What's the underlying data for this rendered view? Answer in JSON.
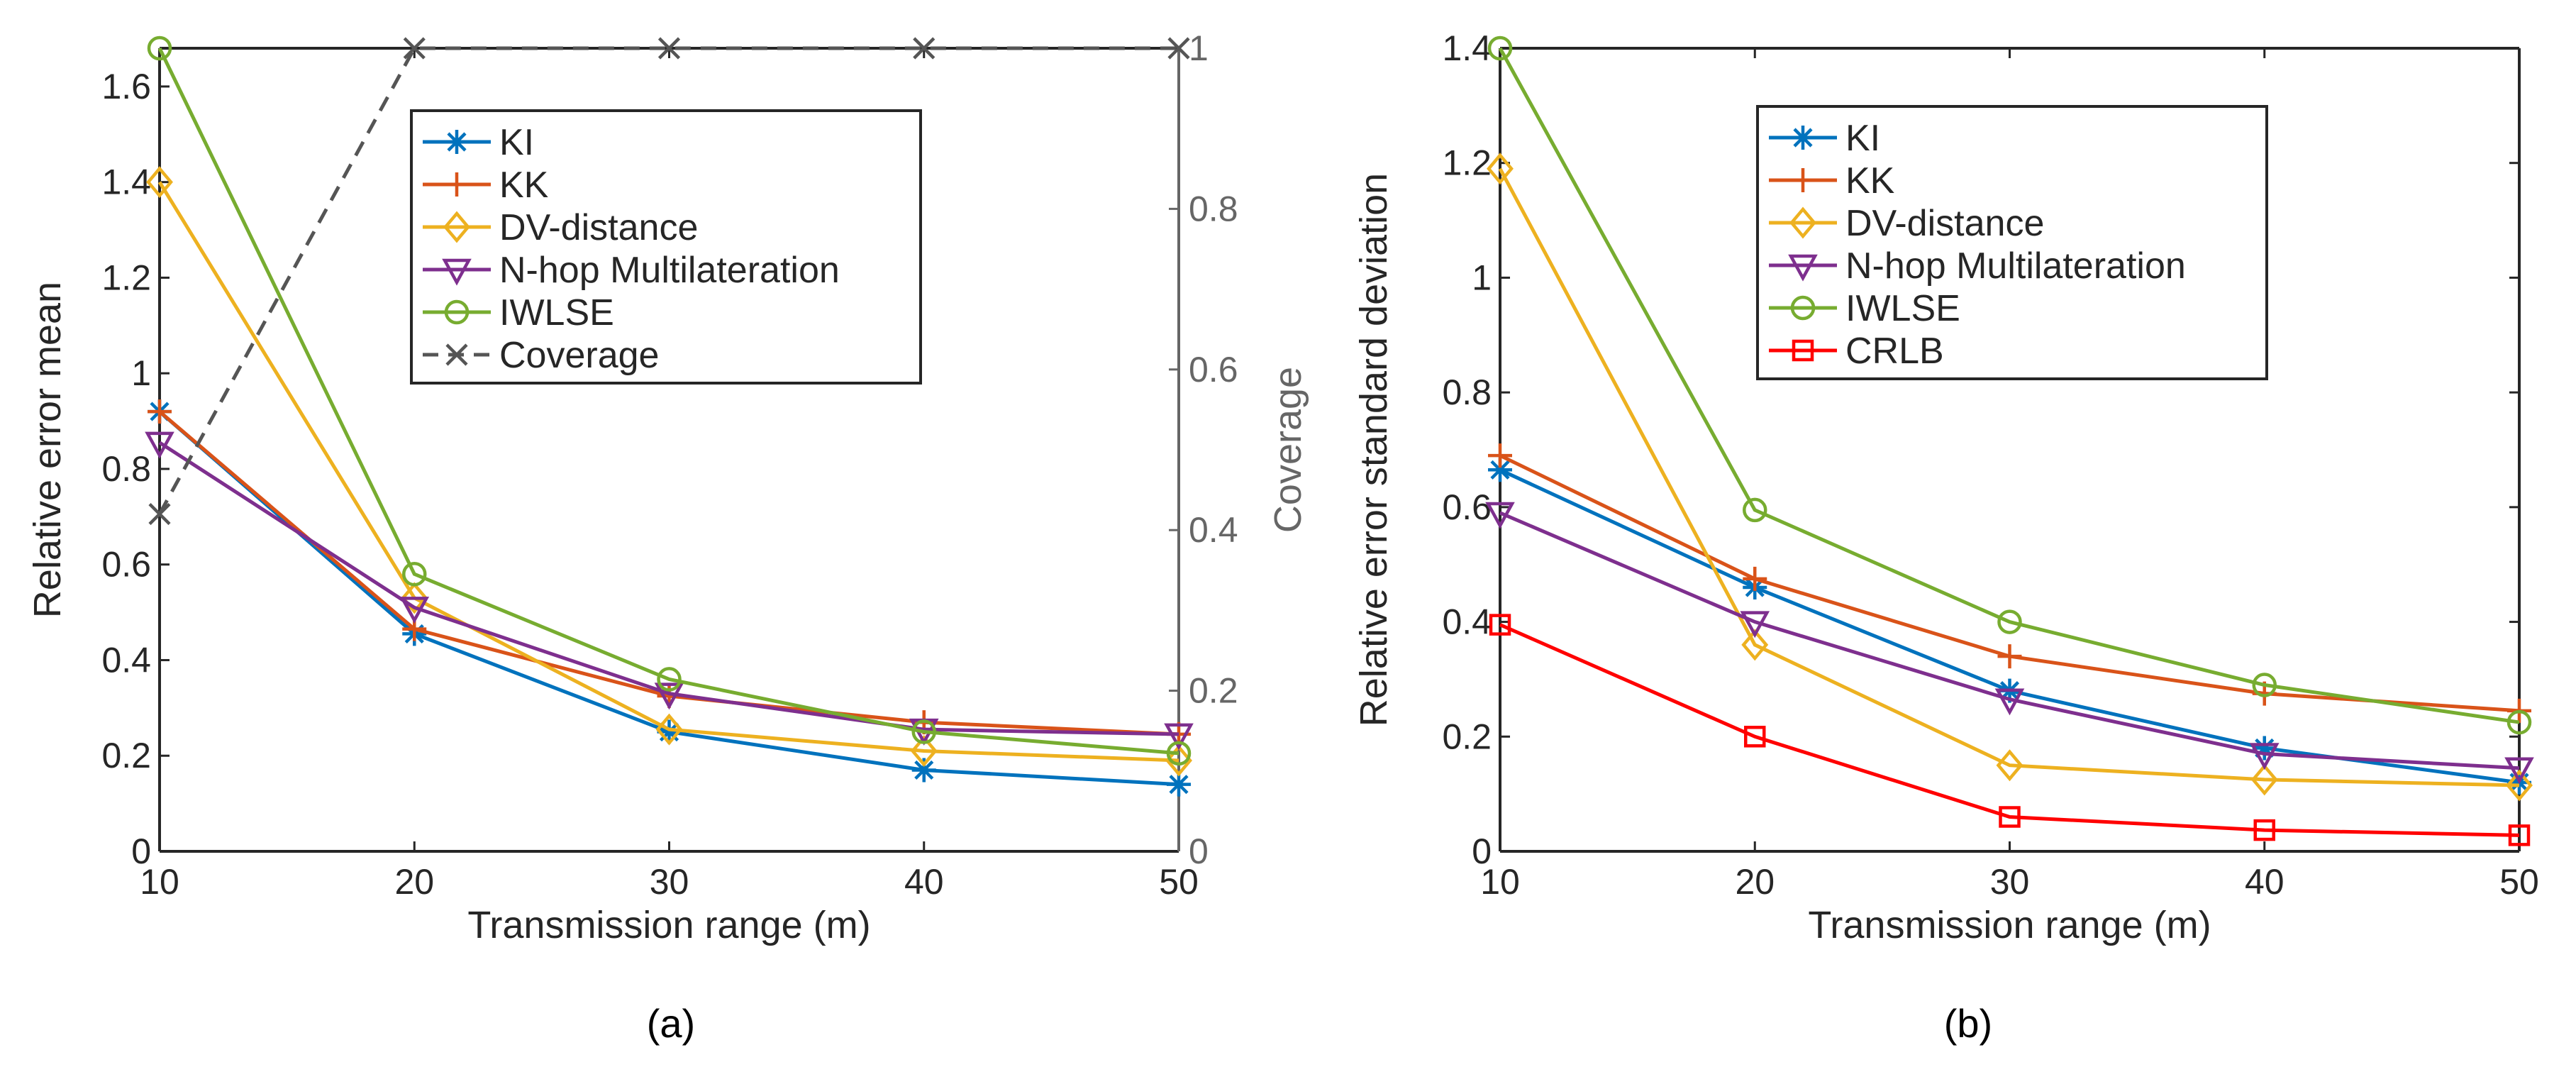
{
  "panels": {
    "a": {
      "caption": "(a)"
    },
    "b": {
      "caption": "(b)"
    }
  },
  "chart_data": [
    {
      "type": "line",
      "title": "",
      "xlabel": "Transmission range (m)",
      "ylabel": "Relative error mean",
      "y2label": "Coverage",
      "xlim": [
        10,
        50
      ],
      "ylim": [
        0,
        1.68
      ],
      "y2lim": [
        0,
        1
      ],
      "xticks": [
        "10",
        "20",
        "30",
        "40",
        "50"
      ],
      "yticks": [
        "0",
        "0.2",
        "0.4",
        "0.6",
        "0.8",
        "1",
        "1.2",
        "1.4",
        "1.6"
      ],
      "y2ticks": [
        "0",
        "0.2",
        "0.4",
        "0.6",
        "0.8",
        "1"
      ],
      "x": [
        10,
        20,
        30,
        40,
        50
      ],
      "legend_position": "top-right",
      "series": [
        {
          "name": "KI",
          "color": "#0072BD",
          "marker": "asterisk",
          "axis": "left",
          "values": [
            0.92,
            0.455,
            0.25,
            0.17,
            0.14
          ]
        },
        {
          "name": "KK",
          "color": "#D95319",
          "marker": "plus",
          "axis": "left",
          "values": [
            0.92,
            0.465,
            0.325,
            0.27,
            0.245
          ]
        },
        {
          "name": "DV-distance",
          "color": "#EDB120",
          "marker": "diamond",
          "axis": "left",
          "values": [
            1.4,
            0.53,
            0.255,
            0.21,
            0.19
          ]
        },
        {
          "name": "N-hop Multilateration",
          "color": "#7E2F8E",
          "marker": "triangle-down",
          "axis": "left",
          "values": [
            0.855,
            0.51,
            0.33,
            0.255,
            0.245
          ]
        },
        {
          "name": "IWLSE",
          "color": "#77AC30",
          "marker": "circle",
          "axis": "left",
          "values": [
            1.68,
            0.58,
            0.36,
            0.25,
            0.205
          ]
        },
        {
          "name": "Coverage",
          "color": "#555555",
          "marker": "x",
          "axis": "right",
          "dashed": true,
          "values": [
            0.42,
            1.0,
            1.0,
            1.0,
            1.0
          ]
        }
      ]
    },
    {
      "type": "line",
      "title": "",
      "xlabel": "Transmission range (m)",
      "ylabel": "Relative error standard deviation",
      "xlim": [
        10,
        50
      ],
      "ylim": [
        0,
        1.4
      ],
      "xticks": [
        "10",
        "20",
        "30",
        "40",
        "50"
      ],
      "yticks": [
        "0",
        "0.2",
        "0.4",
        "0.6",
        "0.8",
        "1",
        "1.2",
        "1.4"
      ],
      "x": [
        10,
        20,
        30,
        40,
        50
      ],
      "legend_position": "top-right",
      "series": [
        {
          "name": "KI",
          "color": "#0072BD",
          "marker": "asterisk",
          "values": [
            0.665,
            0.46,
            0.28,
            0.18,
            0.12
          ]
        },
        {
          "name": "KK",
          "color": "#D95319",
          "marker": "plus",
          "values": [
            0.69,
            0.475,
            0.34,
            0.275,
            0.245
          ]
        },
        {
          "name": "DV-distance",
          "color": "#EDB120",
          "marker": "diamond",
          "values": [
            1.19,
            0.36,
            0.15,
            0.125,
            0.115
          ]
        },
        {
          "name": "N-hop Multilateration",
          "color": "#7E2F8E",
          "marker": "triangle-down",
          "values": [
            0.59,
            0.4,
            0.265,
            0.17,
            0.145
          ]
        },
        {
          "name": "IWLSE",
          "color": "#77AC30",
          "marker": "circle",
          "values": [
            1.4,
            0.595,
            0.4,
            0.29,
            0.225
          ]
        },
        {
          "name": "CRLB",
          "color": "#FF0000",
          "marker": "square",
          "values": [
            0.395,
            0.2,
            0.06,
            0.037,
            0.028
          ]
        }
      ]
    }
  ]
}
